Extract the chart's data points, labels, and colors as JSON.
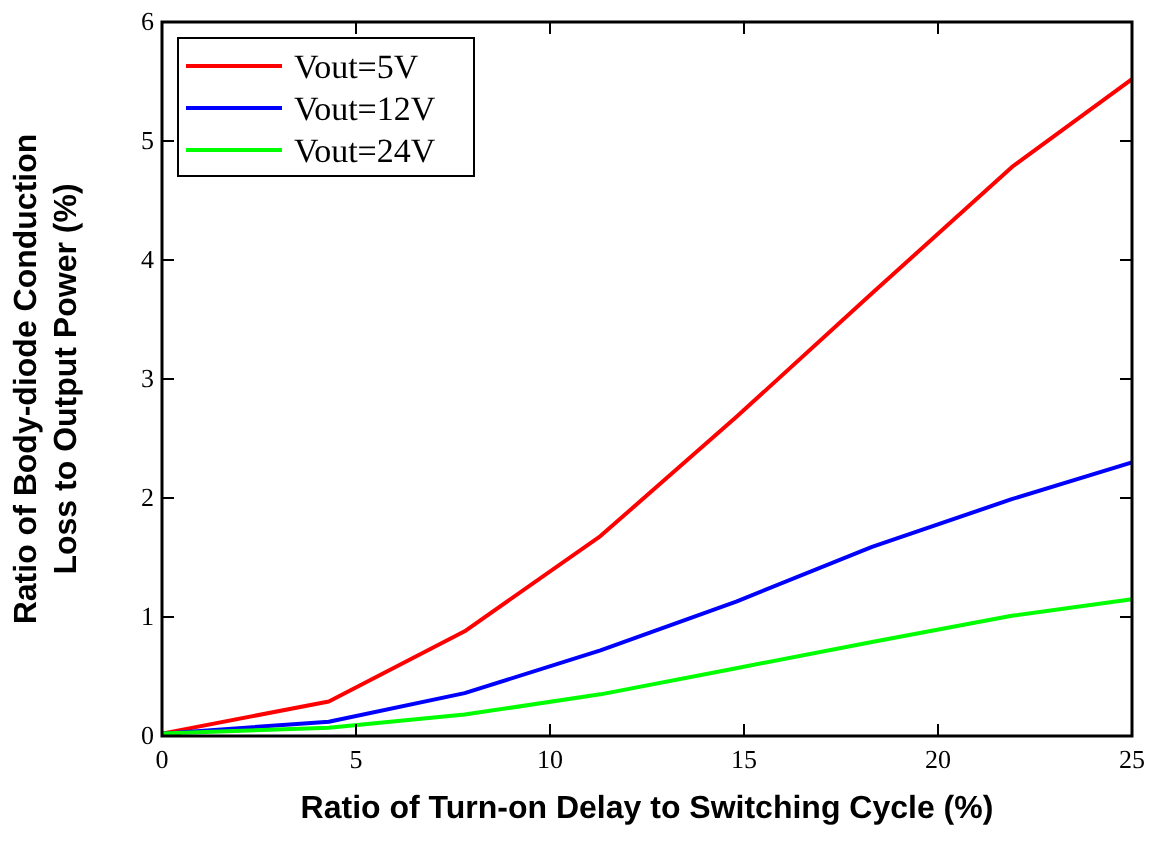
{
  "chart_data": {
    "type": "line",
    "xlabel": "Ratio of Turn-on Delay to Switching Cycle (%)",
    "ylabel": "Ratio of Body-diode Conduction Loss to Output Power (%)",
    "x": [
      0,
      4.3,
      7.8,
      11.3,
      14.8,
      18.3,
      21.9,
      25
    ],
    "series": [
      {
        "name": "Vout=5V",
        "color": "#ff0000",
        "values": [
          0.02,
          0.29,
          0.88,
          1.68,
          2.68,
          3.72,
          4.78,
          5.52
        ]
      },
      {
        "name": "Vout=12V",
        "color": "#0000ff",
        "values": [
          0.02,
          0.12,
          0.36,
          0.72,
          1.13,
          1.59,
          1.99,
          2.3
        ]
      },
      {
        "name": "Vout=24V",
        "color": "#00ff00",
        "values": [
          0.02,
          0.07,
          0.18,
          0.35,
          0.57,
          0.79,
          1.01,
          1.15
        ]
      }
    ],
    "xlim": [
      0,
      25
    ],
    "xticks": [
      0,
      5,
      10,
      15,
      20,
      25
    ],
    "ylim": [
      0,
      6
    ],
    "yticks": [
      0,
      1,
      2,
      3,
      4,
      5,
      6
    ],
    "grid": false,
    "legend": "top left",
    "marker": "none",
    "line_style": "solid"
  }
}
